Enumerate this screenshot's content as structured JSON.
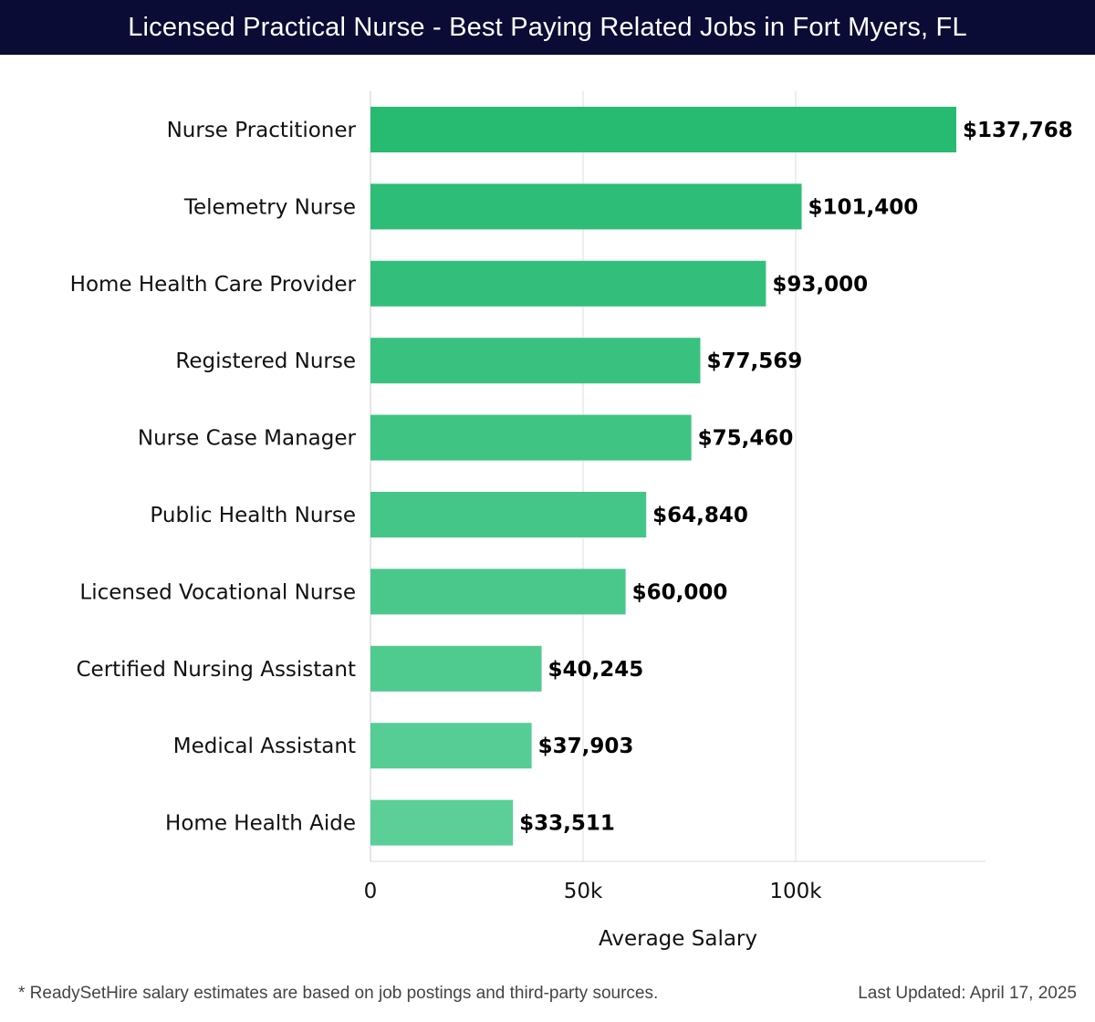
{
  "header": {
    "title": "Licensed Practical Nurse - Best Paying Related Jobs in Fort Myers, FL"
  },
  "footer": {
    "note": "* ReadySetHire salary estimates are based on job postings and third-party sources.",
    "updated": "Last Updated: April 17, 2025"
  },
  "colors": {
    "title_bar": "#0b0c35",
    "bar_top": "#27bb72",
    "bar_bottom": "#5ccf99",
    "grid": "#dddddd"
  },
  "chart_data": {
    "type": "bar",
    "orientation": "horizontal",
    "xlabel": "Average Salary",
    "ylabel": "",
    "xlim": [
      0,
      145000
    ],
    "grid": true,
    "categories": [
      "Nurse Practitioner",
      "Telemetry Nurse",
      "Home Health Care Provider",
      "Registered Nurse",
      "Nurse Case Manager",
      "Public Health Nurse",
      "Licensed Vocational Nurse",
      "Certified Nursing Assistant",
      "Medical Assistant",
      "Home Health Aide"
    ],
    "values": [
      137768,
      101400,
      93000,
      77569,
      75460,
      64840,
      60000,
      40245,
      37903,
      33511
    ],
    "data_labels": [
      "$137,768",
      "$101,400",
      "$93,000",
      "$77,569",
      "$75,460",
      "$64,840",
      "$60,000",
      "$40,245",
      "$37,903",
      "$33,511"
    ],
    "x_ticks": [
      {
        "value": 0,
        "label": "0"
      },
      {
        "value": 50000,
        "label": "50k"
      },
      {
        "value": 100000,
        "label": "100k"
      }
    ]
  }
}
